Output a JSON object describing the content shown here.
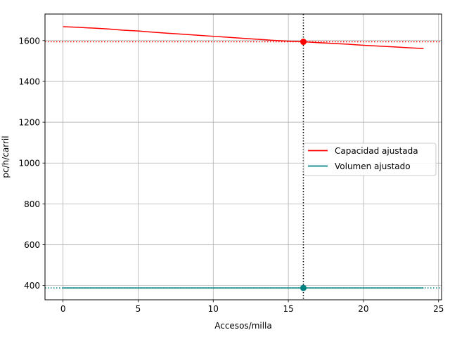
{
  "chart_data": {
    "type": "line",
    "xlabel": "Accesos/milla",
    "ylabel": "pc/h/carril",
    "xlim": [
      -1.2,
      25.2
    ],
    "ylim": [
      330,
      1730
    ],
    "xticks": [
      0,
      5,
      10,
      15,
      20,
      25
    ],
    "yticks": [
      400,
      600,
      800,
      1000,
      1200,
      1400,
      1600
    ],
    "grid": true,
    "legend_position": "center-right",
    "series": [
      {
        "name": "Capacidad ajustada",
        "color": "#ff0000",
        "x": [
          0,
          1,
          2,
          3,
          4,
          5,
          6,
          7,
          8,
          9,
          10,
          11,
          12,
          13,
          14,
          15,
          16,
          17,
          18,
          19,
          20,
          21,
          22,
          23,
          24
        ],
        "y": [
          1668,
          1665,
          1661,
          1657,
          1651,
          1647,
          1641,
          1636,
          1631,
          1626,
          1621,
          1616,
          1611,
          1606,
          1601,
          1597,
          1594,
          1590,
          1586,
          1582,
          1577,
          1573,
          1569,
          1565,
          1561
        ]
      },
      {
        "name": "Volumen ajustado",
        "color": "#008080",
        "x": [
          0,
          24
        ],
        "y": [
          388,
          388
        ]
      }
    ],
    "reference_lines": {
      "vertical_x": 16,
      "vertical_color": "#000000",
      "capacity_h_y": 1594,
      "capacity_h_color": "#ff0000",
      "volume_h_y": 388,
      "volume_h_color": "#008080"
    },
    "markers": [
      {
        "x": 16,
        "y": 1594,
        "color": "#ff0000"
      },
      {
        "x": 16,
        "y": 388,
        "color": "#008080"
      }
    ]
  }
}
